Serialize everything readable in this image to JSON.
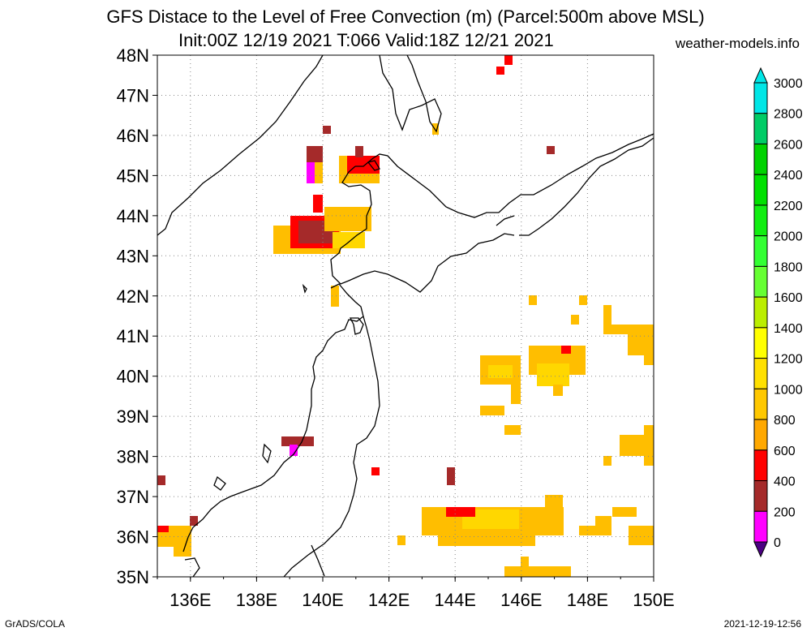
{
  "title_line1": "GFS Distace to the Level of Free Convection (m) (Parcel:500m above MSL)",
  "title_line2": "Init:00Z 12/19 2021 T:066 Valid:18Z 12/21 2021",
  "site": "weather-models.info",
  "footer_left": "GrADS/COLA",
  "footer_right": "2021-12-19-12:56",
  "map": {
    "lat_labels": [
      "48N",
      "47N",
      "46N",
      "45N",
      "44N",
      "43N",
      "42N",
      "41N",
      "40N",
      "39N",
      "38N",
      "37N",
      "36N",
      "35N"
    ],
    "lon_labels": [
      "136E",
      "138E",
      "140E",
      "142E",
      "144E",
      "146E",
      "148E",
      "150E"
    ],
    "lat_range": [
      35,
      48
    ],
    "lon_range": [
      135,
      150
    ],
    "grid": "dotted",
    "colors": {
      "c200": "#ff00ff",
      "c400": "#a52a2a",
      "c600": "#ff0000",
      "c800": "#ff9a00",
      "c1000": "#ffbe00",
      "c1200": "#ffd700"
    }
  },
  "colorbar": {
    "labels": [
      "3000",
      "2800",
      "2600",
      "2400",
      "2200",
      "2000",
      "1800",
      "1600",
      "1400",
      "1200",
      "1000",
      "800",
      "600",
      "400",
      "200",
      "0"
    ],
    "colors": [
      "#00e6e6",
      "#00cc66",
      "#00d200",
      "#00e000",
      "#11ee11",
      "#33ff33",
      "#66ff33",
      "#bbee00",
      "#ffff00",
      "#ffe000",
      "#ffc800",
      "#ffa800",
      "#ff0000",
      "#a52a2a",
      "#ff00ff",
      "#4b0082"
    ]
  }
}
